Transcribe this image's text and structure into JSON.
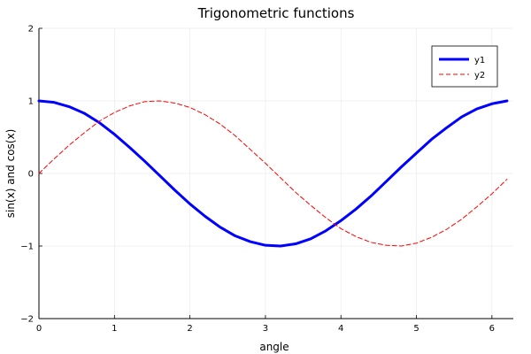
{
  "chart_data": {
    "type": "line",
    "title": "Trigonometric functions",
    "xlabel": "angle",
    "ylabel": "sin(x) and cos(x)",
    "xlim": [
      0,
      6.283
    ],
    "ylim": [
      -2,
      2
    ],
    "x_ticks": [
      0,
      1,
      2,
      3,
      4,
      5,
      6
    ],
    "y_ticks": [
      -2,
      -1,
      0,
      1,
      2
    ],
    "x_tick_labels": [
      "0",
      "1",
      "2",
      "3",
      "4",
      "5",
      "6"
    ],
    "y_tick_labels": [
      "−2",
      "−1",
      "0",
      "1",
      "2"
    ],
    "grid": true,
    "legend_position": "top-right",
    "x": [
      0,
      0.2,
      0.4,
      0.6,
      0.8,
      1.0,
      1.2,
      1.4,
      1.6,
      1.8,
      2.0,
      2.2,
      2.4,
      2.6,
      2.8,
      3.0,
      3.2,
      3.4,
      3.6,
      3.8,
      4.0,
      4.2,
      4.4,
      4.6,
      4.8,
      5.0,
      5.2,
      5.4,
      5.6,
      5.8,
      6.0,
      6.2
    ],
    "series": [
      {
        "name": "y1",
        "color": "#0000ff",
        "style": "solid",
        "values": [
          1.0,
          0.98,
          0.92,
          0.83,
          0.7,
          0.54,
          0.36,
          0.17,
          -0.03,
          -0.23,
          -0.42,
          -0.59,
          -0.74,
          -0.86,
          -0.94,
          -0.99,
          -1.0,
          -0.97,
          -0.9,
          -0.79,
          -0.65,
          -0.49,
          -0.31,
          -0.11,
          0.09,
          0.28,
          0.47,
          0.63,
          0.78,
          0.89,
          0.96,
          1.0
        ]
      },
      {
        "name": "y2",
        "color": "#ff0000",
        "style": "dashed",
        "values": [
          0.0,
          0.2,
          0.39,
          0.56,
          0.72,
          0.84,
          0.93,
          0.99,
          1.0,
          0.97,
          0.91,
          0.81,
          0.68,
          0.52,
          0.33,
          0.14,
          -0.06,
          -0.26,
          -0.44,
          -0.61,
          -0.76,
          -0.87,
          -0.95,
          -0.99,
          -1.0,
          -0.96,
          -0.88,
          -0.77,
          -0.63,
          -0.46,
          -0.28,
          -0.08
        ]
      }
    ]
  }
}
